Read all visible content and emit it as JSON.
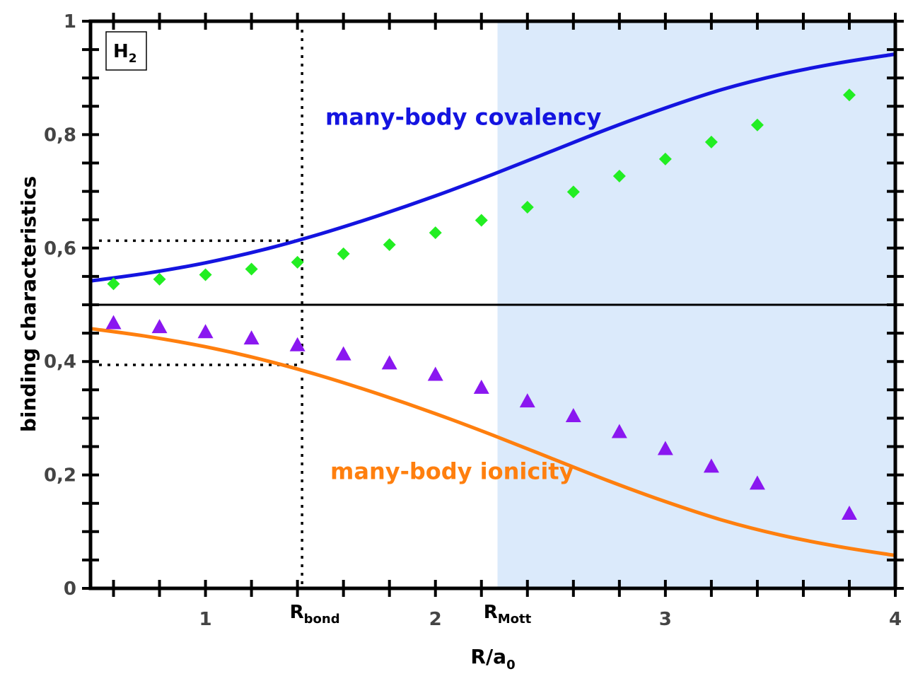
{
  "chart_data": {
    "type": "line",
    "title": "",
    "xlabel": "R/a",
    "xlabel_sub": "0",
    "ylabel": "binding characteristics",
    "xlim": [
      0.5,
      4.0
    ],
    "ylim": [
      0,
      1
    ],
    "x_ticks": [
      {
        "value": 1,
        "label": "1"
      },
      {
        "value": 2,
        "label": "2"
      },
      {
        "value": 3,
        "label": "3"
      },
      {
        "value": 4,
        "label": "4"
      }
    ],
    "y_ticks": [
      {
        "value": 0,
        "label": "0"
      },
      {
        "value": 0.2,
        "label": "0,2"
      },
      {
        "value": 0.4,
        "label": "0,4"
      },
      {
        "value": 0.6,
        "label": "0,6"
      },
      {
        "value": 0.8,
        "label": "0,8"
      },
      {
        "value": 1,
        "label": "1"
      }
    ],
    "x_minor_ticks": [
      0.6,
      0.8,
      1.0,
      1.2,
      1.4,
      1.6,
      1.8,
      2.0,
      2.2,
      2.4,
      2.6,
      2.8,
      3.0,
      3.2,
      3.4,
      3.6,
      3.8,
      4.0
    ],
    "y_minor_step": 0.05,
    "legend_box": {
      "text": "H",
      "sub": "2"
    },
    "shaded_region": {
      "x_start": 2.27,
      "x_end": 4.0,
      "color": "#dbeafb"
    },
    "horizontal_line": {
      "y": 0.5,
      "color": "#000000"
    },
    "markers": [
      {
        "name": "bond",
        "x": 1.42,
        "label": "R",
        "sub": "bond",
        "guide_levels": [
          0.613,
          0.394
        ]
      },
      {
        "name": "mott",
        "x": 2.27,
        "label": "R",
        "sub": "Mott"
      }
    ],
    "annotations": [
      {
        "text": "many-body covalency",
        "color": "#1414e0",
        "x": 2.4,
        "y": 0.82
      },
      {
        "text": "many-body ionicity",
        "color": "#ff7f0e",
        "x": 2.05,
        "y": 0.195
      }
    ],
    "series": [
      {
        "name": "many-body covalency",
        "kind": "line",
        "color": "#1414e0",
        "x": [
          0.5,
          0.75,
          1.0,
          1.25,
          1.5,
          1.75,
          2.0,
          2.25,
          2.5,
          2.75,
          3.0,
          3.25,
          3.5,
          3.75,
          4.0
        ],
        "values": [
          0.542,
          0.556,
          0.574,
          0.597,
          0.625,
          0.657,
          0.692,
          0.73,
          0.77,
          0.81,
          0.847,
          0.88,
          0.906,
          0.926,
          0.942
        ]
      },
      {
        "name": "many-body ionicity",
        "kind": "line",
        "color": "#ff7f0e",
        "x": [
          0.5,
          0.75,
          1.0,
          1.25,
          1.5,
          1.75,
          2.0,
          2.25,
          2.5,
          2.75,
          3.0,
          3.25,
          3.5,
          3.75,
          4.0
        ],
        "values": [
          0.458,
          0.444,
          0.426,
          0.403,
          0.375,
          0.343,
          0.308,
          0.27,
          0.23,
          0.19,
          0.153,
          0.12,
          0.094,
          0.074,
          0.058
        ]
      },
      {
        "name": "covalency points",
        "kind": "scatter",
        "marker": "diamond",
        "color": "#22ee22",
        "x": [
          0.6,
          0.8,
          1.0,
          1.2,
          1.4,
          1.6,
          1.8,
          2.0,
          2.2,
          2.4,
          2.6,
          2.8,
          3.0,
          3.2,
          3.4,
          3.8
        ],
        "values": [
          0.537,
          0.545,
          0.553,
          0.563,
          0.575,
          0.59,
          0.606,
          0.627,
          0.649,
          0.672,
          0.699,
          0.727,
          0.757,
          0.787,
          0.817,
          0.87
        ]
      },
      {
        "name": "ionicity points",
        "kind": "scatter",
        "marker": "triangle",
        "color": "#8a17f0",
        "x": [
          0.6,
          0.8,
          1.0,
          1.2,
          1.4,
          1.6,
          1.8,
          2.0,
          2.2,
          2.4,
          2.6,
          2.8,
          3.0,
          3.2,
          3.4,
          3.8
        ],
        "values": [
          0.467,
          0.46,
          0.451,
          0.44,
          0.428,
          0.412,
          0.396,
          0.376,
          0.353,
          0.329,
          0.303,
          0.275,
          0.245,
          0.214,
          0.184,
          0.131
        ]
      }
    ]
  }
}
